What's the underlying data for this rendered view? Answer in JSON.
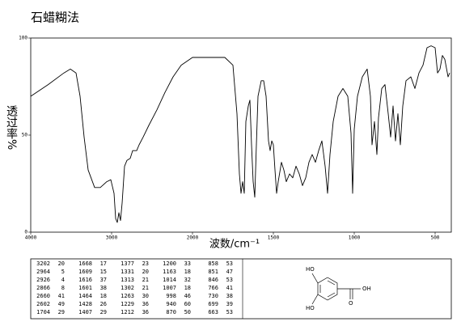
{
  "chart_data": {
    "type": "line",
    "title": "石蜡糊法",
    "xlabel": "波数/cm⁻¹",
    "ylabel": "透过率%",
    "xlim": [
      4000,
      400
    ],
    "xticks": [
      4000,
      3000,
      2000,
      1500,
      1000,
      500
    ],
    "x_scale_break": 2000,
    "ylim": [
      0,
      100
    ],
    "yticks": [
      0,
      50,
      100
    ],
    "color": "#000000",
    "x": [
      4000,
      3785,
      3590,
      3510,
      3440,
      3390,
      3340,
      3290,
      3210,
      3140,
      3060,
      3010,
      2970,
      2950,
      2930,
      2910,
      2890,
      2870,
      2840,
      2810,
      2770,
      2740,
      2690,
      2660,
      2610,
      2540,
      2440,
      2340,
      2240,
      2140,
      2000,
      1875,
      1800,
      1750,
      1725,
      1710,
      1700,
      1690,
      1680,
      1670,
      1655,
      1645,
      1635,
      1625,
      1615,
      1605,
      1595,
      1575,
      1560,
      1545,
      1530,
      1520,
      1510,
      1500,
      1490,
      1480,
      1470,
      1450,
      1435,
      1420,
      1400,
      1380,
      1360,
      1340,
      1320,
      1300,
      1280,
      1260,
      1240,
      1220,
      1200,
      1180,
      1165,
      1150,
      1130,
      1100,
      1070,
      1040,
      1020,
      1010,
      1000,
      980,
      950,
      920,
      900,
      890,
      875,
      860,
      850,
      830,
      810,
      790,
      775,
      760,
      745,
      730,
      715,
      700,
      680,
      650,
      625,
      600,
      575,
      550,
      525,
      500,
      485,
      470,
      455,
      440,
      420,
      410
    ],
    "values": [
      70,
      76,
      82,
      84,
      82,
      70,
      49,
      32,
      23,
      23,
      26,
      27,
      20,
      7,
      5,
      10,
      6,
      15,
      34,
      37,
      38,
      42,
      42,
      45,
      49,
      55,
      63,
      72,
      80,
      86,
      90,
      90,
      90,
      86,
      61,
      30,
      20,
      26,
      20,
      57,
      65,
      68,
      45,
      26,
      18,
      45,
      70,
      78,
      78,
      70,
      47,
      42,
      47,
      45,
      32,
      20,
      26,
      36,
      32,
      26,
      30,
      28,
      34,
      30,
      24,
      28,
      36,
      40,
      36,
      42,
      47,
      34,
      20,
      40,
      57,
      70,
      74,
      70,
      51,
      20,
      53,
      70,
      80,
      84,
      70,
      45,
      57,
      40,
      59,
      74,
      76,
      61,
      49,
      65,
      47,
      61,
      45,
      65,
      78,
      80,
      74,
      82,
      86,
      95,
      96,
      95,
      82,
      84,
      91,
      89,
      80,
      82
    ]
  },
  "peak_table": {
    "columns": [
      [
        [
          "3202",
          "20"
        ],
        [
          "2964",
          "5"
        ],
        [
          "2926",
          "4"
        ],
        [
          "2866",
          "8"
        ],
        [
          "2660",
          "41"
        ],
        [
          "2602",
          "49"
        ],
        [
          "1704",
          "29"
        ]
      ],
      [
        [
          "1668",
          "17"
        ],
        [
          "1609",
          "15"
        ],
        [
          "1616",
          "37"
        ],
        [
          "1601",
          "38"
        ],
        [
          "1464",
          "18"
        ],
        [
          "1428",
          "26"
        ],
        [
          "1407",
          "29"
        ]
      ],
      [
        [
          "1377",
          "23"
        ],
        [
          "1331",
          "20"
        ],
        [
          "1313",
          "21"
        ],
        [
          "1302",
          "21"
        ],
        [
          "1263",
          "30"
        ],
        [
          "1229",
          "36"
        ],
        [
          "1212",
          "36"
        ]
      ],
      [
        [
          "1200",
          "33"
        ],
        [
          "1163",
          "18"
        ],
        [
          "1014",
          "32"
        ],
        [
          "1007",
          "18"
        ],
        [
          "998",
          "46"
        ],
        [
          "940",
          "60"
        ],
        [
          "870",
          "50"
        ]
      ],
      [
        [
          "858",
          "53"
        ],
        [
          "851",
          "47"
        ],
        [
          "846",
          "53"
        ],
        [
          "766",
          "41"
        ],
        [
          "730",
          "38"
        ],
        [
          "699",
          "39"
        ],
        [
          "663",
          "53"
        ]
      ]
    ]
  },
  "structure": {
    "labels": [
      "HO",
      "HO",
      "OH",
      "O"
    ]
  }
}
